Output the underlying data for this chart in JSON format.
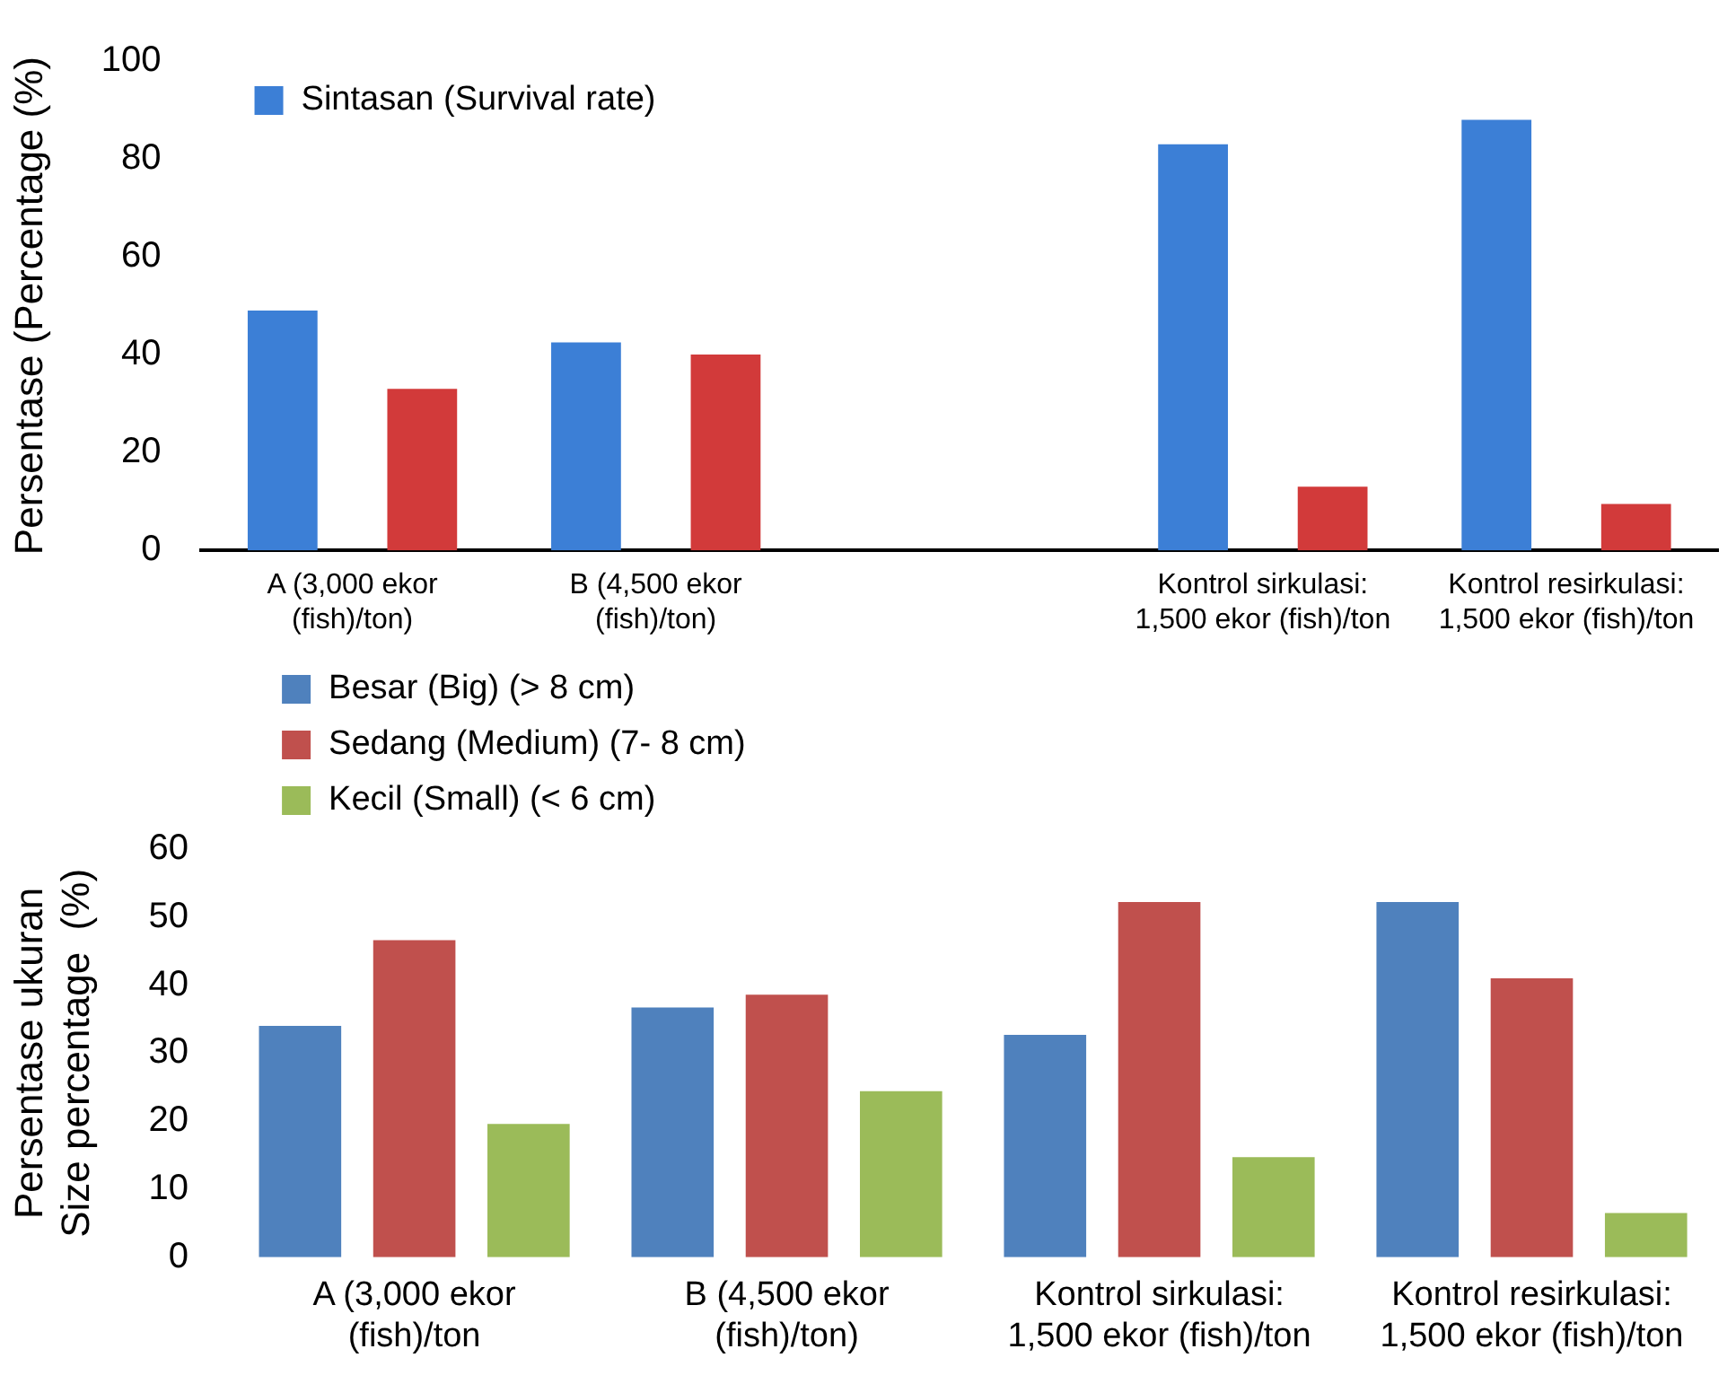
{
  "chart_data": [
    {
      "type": "bar",
      "ylabel": "Persentase (Percentage (%)",
      "categories": [
        "A (3,000 ekor\n(fish)/ton)",
        "B (4,500 ekor\n(fish)/ton)",
        null,
        "Kontrol sirkulasi:\n1,500 ekor (fish)/ton",
        "Kontrol resirkulasi:\n1,500 ekor (fish)/ton"
      ],
      "series": [
        {
          "name": "Sintasan (Survival rate)",
          "color": "#3c7fd6",
          "values": [
            49,
            42.5,
            null,
            83,
            88
          ]
        },
        {
          "color": "#d23a3a",
          "values": [
            33,
            40,
            null,
            13,
            9.5
          ]
        }
      ],
      "ylim": [
        0,
        100
      ],
      "yticks": [
        0,
        20,
        40,
        60,
        80,
        100
      ],
      "grid": false,
      "legend": "top left"
    },
    {
      "type": "bar",
      "ylabel": "Persentase ukuran\nSize percentage  (%)",
      "categories": [
        "A (3,000 ekor\n(fish)/ton",
        "B (4,500 ekor\n(fish)/ton)",
        "Kontrol sirkulasi:\n1,500 ekor (fish)/ton",
        "Kontrol resirkulasi:\n1,500 ekor (fish)/ton"
      ],
      "series": [
        {
          "name": "Besar (Big) (> 8 cm)",
          "color": "#4f81bd",
          "values": [
            34,
            36.7,
            32.7,
            52.2
          ]
        },
        {
          "name": "Sedang (Medium) (7- 8 cm)",
          "color": "#c0504d",
          "values": [
            46.6,
            38.6,
            52.2,
            41
          ]
        },
        {
          "name": "Kecil (Small) (< 6 cm)",
          "color": "#9bbb59",
          "values": [
            19.6,
            24.4,
            14.7,
            6.5
          ]
        }
      ],
      "ylim": [
        0,
        60
      ],
      "yticks": [
        0,
        10,
        20,
        30,
        40,
        50,
        60
      ],
      "grid": false,
      "legend": "top left"
    }
  ]
}
